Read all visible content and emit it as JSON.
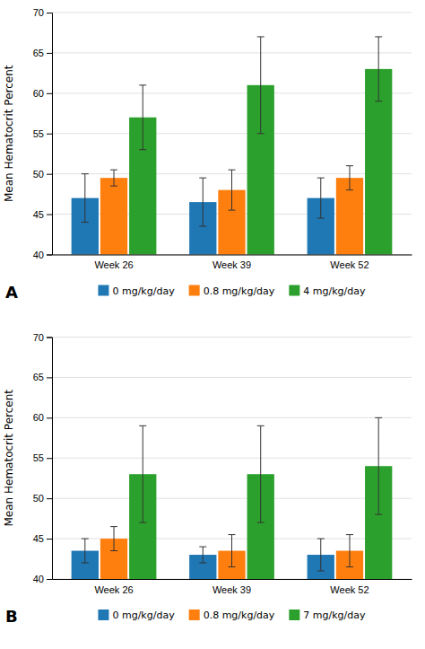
{
  "chart_data": [
    {
      "type": "bar",
      "categories": [
        "Week 26",
        "Week 39",
        "Week 52"
      ],
      "series": [
        {
          "name": "0 mg/kg/day",
          "values": [
            47.0,
            46.5,
            47.0
          ],
          "errors": [
            3.0,
            3.0,
            2.5
          ]
        },
        {
          "name": "0.8 mg/kg/day",
          "values": [
            49.5,
            48.0,
            49.5
          ],
          "errors": [
            1.0,
            2.5,
            1.5
          ]
        },
        {
          "name": "4 mg/kg/day",
          "values": [
            57.0,
            61.0,
            63.0
          ],
          "errors": [
            4.0,
            6.0,
            4.0
          ]
        }
      ],
      "ylabel": "Mean Hematocrit Percent",
      "ylim": [
        40,
        70
      ],
      "yticks": [
        40,
        45,
        50,
        55,
        60,
        65,
        70
      ],
      "grid": true,
      "legend": "bottom",
      "annotation": "A"
    },
    {
      "type": "bar",
      "categories": [
        "Week 26",
        "Week 39",
        "Week 52"
      ],
      "series": [
        {
          "name": "0 mg/kg/day",
          "values": [
            43.5,
            43.0,
            43.0
          ],
          "errors": [
            1.5,
            1.0,
            2.0
          ]
        },
        {
          "name": "0.8 mg/kg/day",
          "values": [
            45.0,
            43.5,
            43.5
          ],
          "errors": [
            1.5,
            2.0,
            2.0
          ]
        },
        {
          "name": "7 mg/kg/day",
          "values": [
            53.0,
            53.0,
            54.0
          ],
          "errors": [
            6.0,
            6.0,
            6.0
          ]
        }
      ],
      "ylabel": "Mean Hematocrit Percent",
      "ylim": [
        40,
        70
      ],
      "yticks": [
        40,
        45,
        50,
        55,
        60,
        65,
        70
      ],
      "grid": true,
      "legend": "bottom",
      "annotation": "B"
    }
  ]
}
